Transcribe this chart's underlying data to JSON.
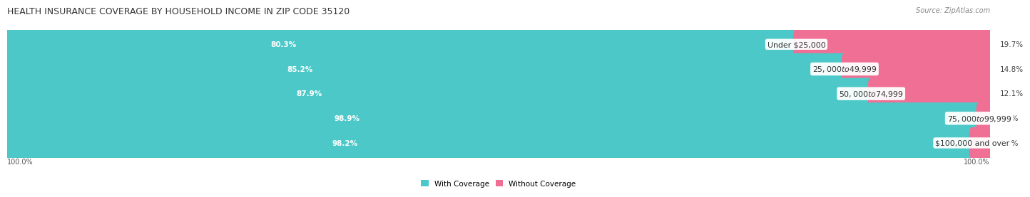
{
  "title": "HEALTH INSURANCE COVERAGE BY HOUSEHOLD INCOME IN ZIP CODE 35120",
  "source": "Source: ZipAtlas.com",
  "categories": [
    "Under $25,000",
    "$25,000 to $49,999",
    "$50,000 to $74,999",
    "$75,000 to $99,999",
    "$100,000 and over"
  ],
  "with_coverage": [
    80.3,
    85.2,
    87.9,
    98.9,
    98.2
  ],
  "without_coverage": [
    19.7,
    14.8,
    12.1,
    1.1,
    1.8
  ],
  "color_with": "#4DC8C8",
  "color_without": "#F07095",
  "color_without_light": "#F5A0B8",
  "row_bg_even": "#ECECEC",
  "row_bg_odd": "#F7F7F7",
  "title_fontsize": 9,
  "label_fontsize": 7.8,
  "pct_fontsize": 7.5,
  "tick_fontsize": 7,
  "legend_fontsize": 7.5,
  "x_left_label": "100.0%",
  "x_right_label": "100.0%",
  "background_color": "#FFFFFF"
}
